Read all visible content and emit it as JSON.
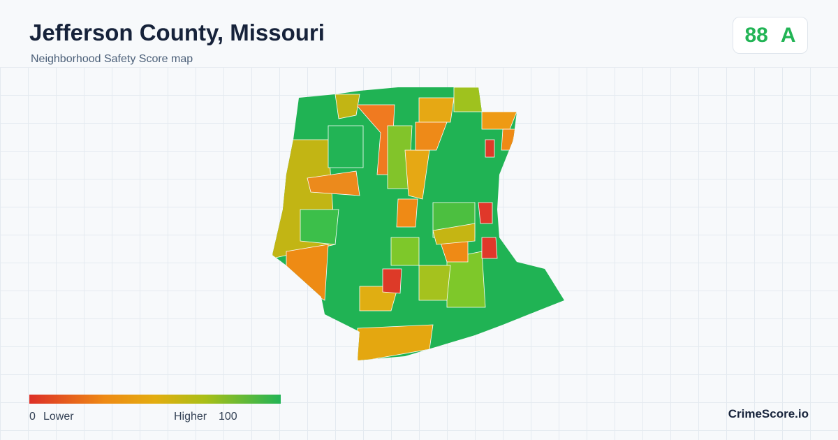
{
  "header": {
    "title": "Jefferson County, Missouri",
    "subtitle": "Neighborhood Safety Score map"
  },
  "score": {
    "value": 88,
    "grade": "A"
  },
  "legend": {
    "min": 0,
    "min_label": "Lower",
    "max_label": "Higher",
    "max": 100
  },
  "brand": "CrimeScore.io"
}
